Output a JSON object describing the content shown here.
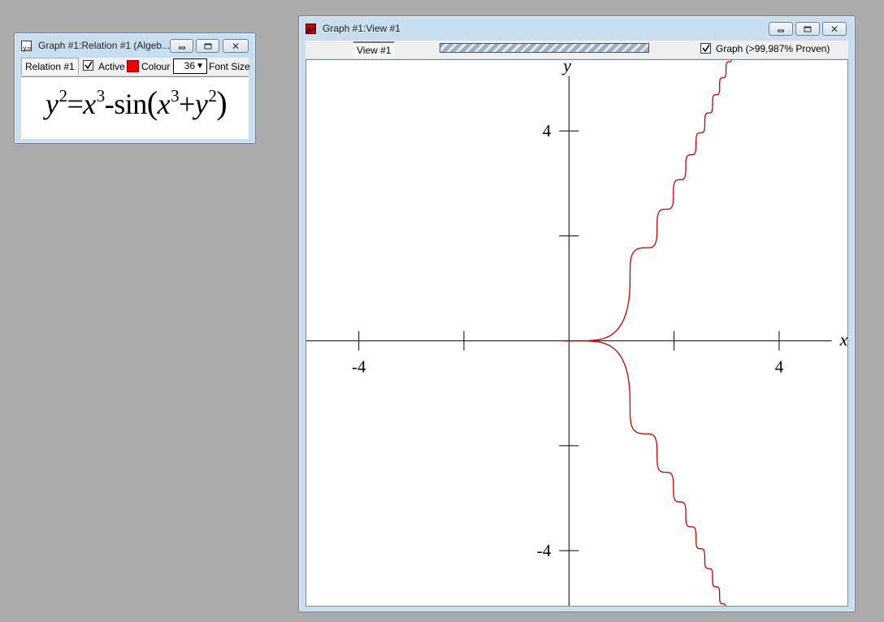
{
  "relation_window": {
    "title": "Graph #1:Relation #1 (Algeb...",
    "icon": "relation-icon",
    "tab_label": "Relation #1",
    "active_label": "Active",
    "active_checked": true,
    "colour_label": "Colour",
    "colour": "#ee0000",
    "font_size_value": "36",
    "font_size_label": "Font Size",
    "formula": {
      "y": "y",
      "y_exp": "2",
      "eq": "=",
      "x": "x",
      "x_exp": "3",
      "minus_sin": "-sin",
      "lparen": "(",
      "x2": "x",
      "x2_exp": "3",
      "plus": "+",
      "y2": "y",
      "y2_exp": "2",
      "rparen": ")"
    }
  },
  "view_window": {
    "title": "Graph #1:View #1",
    "icon": "graph-icon",
    "tab_label": "View #1",
    "graph_label": "Graph (>99,987% Proven)",
    "graph_checked": true,
    "axis_x_label": "x",
    "axis_y_label": "y",
    "x_ticks": [
      -4,
      -2,
      2,
      4
    ],
    "y_ticks": [
      4,
      2,
      -2,
      -4
    ],
    "x_tick_labels": {
      "-4": "-4",
      "4": "4"
    },
    "y_tick_labels": {
      "4": "4",
      "-4": "-4"
    },
    "xlim": [
      -5,
      5.3
    ],
    "ylim": [
      -5.05,
      5.35
    ],
    "curve_color": "#c00000"
  }
}
